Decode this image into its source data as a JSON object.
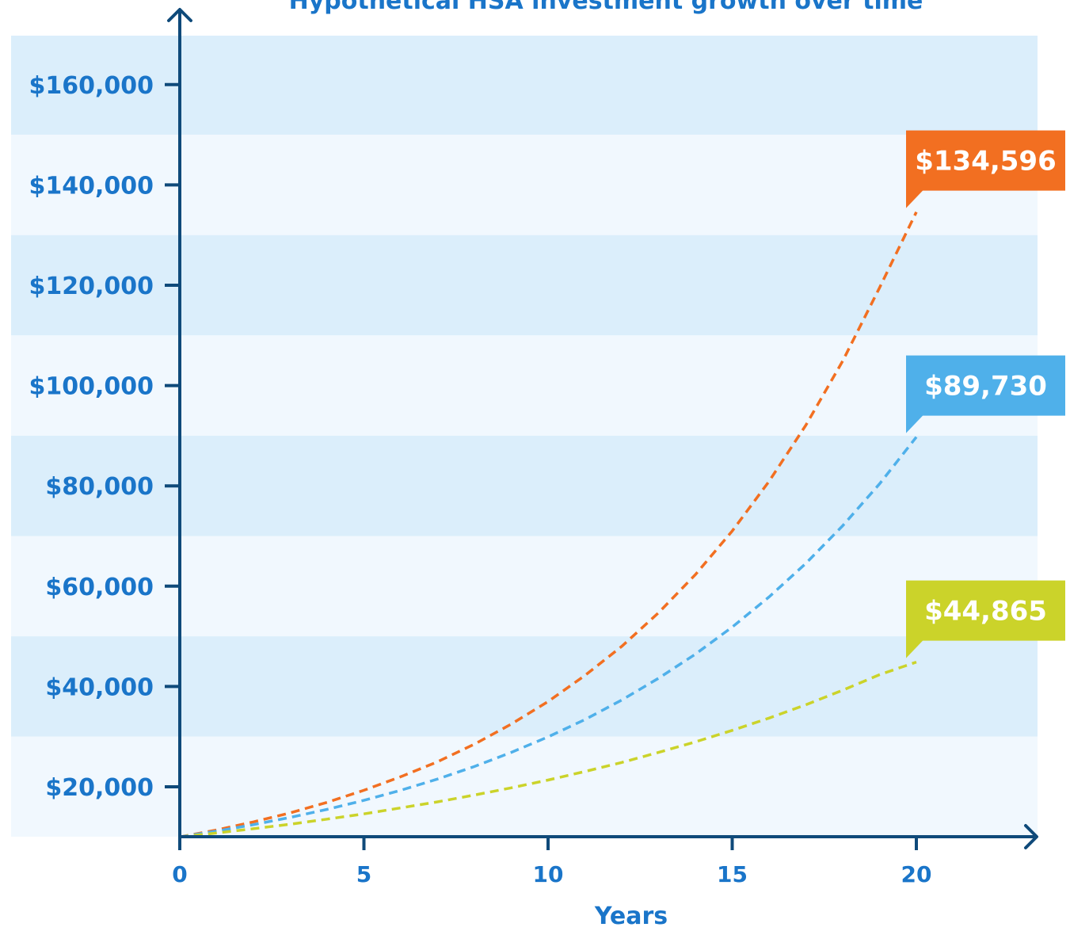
{
  "colors": {
    "band_dark": "#dbeefb",
    "band_light": "#f1f8fe",
    "axis": "#0f4a7a",
    "tick_text": "#1a75c9",
    "title_text": "#1a75c9"
  },
  "chart_data": {
    "type": "line",
    "title": "Hypothetical HSA investment growth over time",
    "xlabel": "Years",
    "ylabel": "",
    "xlim": [
      0,
      23
    ],
    "ylim": [
      10000,
      170000
    ],
    "x_ticks": [
      0,
      5,
      10,
      15,
      20
    ],
    "x_tick_labels": [
      "0",
      "5",
      "10",
      "15",
      "20"
    ],
    "y_ticks": [
      20000,
      40000,
      60000,
      80000,
      100000,
      120000,
      140000,
      160000
    ],
    "y_tick_labels": [
      "$20,000",
      "$40,000",
      "$60,000",
      "$80,000",
      "$100,000",
      "$120,000",
      "$140,000",
      "$160,000"
    ],
    "grid": "alternating horizontal bands",
    "legend": "none",
    "x": [
      0,
      1,
      2,
      3,
      4,
      5,
      6,
      7,
      8,
      9,
      10,
      11,
      12,
      13,
      14,
      15,
      16,
      17,
      18,
      19,
      20
    ],
    "series": [
      {
        "color": "#f26f21",
        "line_style": "dashed",
        "values": [
          10000,
          11390,
          13000,
          14800,
          16900,
          19300,
          22000,
          25000,
          28500,
          32500,
          37000,
          42200,
          48000,
          54700,
          62300,
          71000,
          80900,
          92100,
          104900,
          119500,
          134596
        ],
        "end_label": "$134,596"
      },
      {
        "color": "#4fb0ea",
        "line_style": "dashed",
        "values": [
          10000,
          11160,
          12450,
          13900,
          15500,
          17300,
          19300,
          21550,
          24050,
          26850,
          29950,
          33400,
          37300,
          41650,
          46450,
          51850,
          57850,
          64550,
          72050,
          80400,
          89730
        ],
        "end_label": "$89,730"
      },
      {
        "color": "#cbd32a",
        "line_style": "dashed",
        "values": [
          10000,
          10790,
          11650,
          12550,
          13550,
          14600,
          15800,
          17000,
          18350,
          19800,
          21350,
          23050,
          24850,
          26850,
          28950,
          31250,
          33700,
          36350,
          39250,
          42350,
          44865
        ],
        "end_label": "$44,865"
      }
    ]
  }
}
